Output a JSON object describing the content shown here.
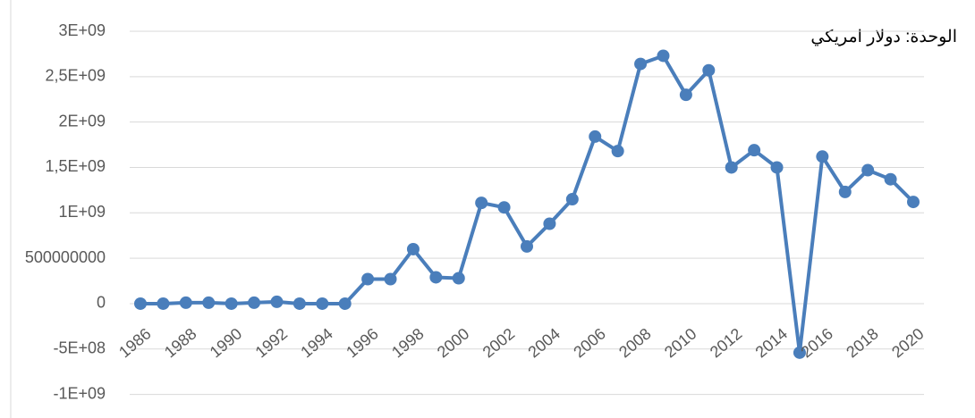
{
  "chart_data": {
    "type": "line",
    "annotation": "الوحدة: دولار امريكي",
    "categories": [
      "1986",
      null,
      "1988",
      null,
      "1990",
      null,
      "1992",
      null,
      "1994",
      null,
      "1996",
      null,
      "1998",
      null,
      "2000",
      null,
      "2002",
      null,
      "2004",
      null,
      "2006",
      null,
      "2008",
      null,
      "2010",
      null,
      "2012",
      null,
      "2014",
      null,
      "2016",
      null,
      "2018",
      null,
      "2020"
    ],
    "series": [
      {
        "color": "#4a7ebb",
        "values": [
          0,
          0,
          10000000,
          10000000,
          0,
          10000000,
          20000000,
          0,
          0,
          0,
          270000000,
          270000000,
          600000000,
          290000000,
          280000000,
          1110000000,
          1060000000,
          630000000,
          880000000,
          1150000000,
          1840000000,
          1680000000,
          2640000000,
          2730000000,
          2300000000,
          2570000000,
          1500000000,
          1690000000,
          1500000000,
          -540000000,
          1620000000,
          1230000000,
          1470000000,
          1370000000,
          1120000000
        ]
      }
    ],
    "ylim": [
      -1000000000,
      3000000000
    ],
    "yticks": [
      {
        "value": -1000000000,
        "label": "-1E+09"
      },
      {
        "value": -500000000,
        "label": "-5E+08"
      },
      0,
      500000000,
      {
        "value": 1000000000,
        "label": "1E+09"
      },
      {
        "value": 1500000000,
        "label": "1,5E+09"
      },
      {
        "value": 2000000000,
        "label": "2E+09"
      },
      {
        "value": 2500000000,
        "label": "2,5E+09"
      },
      {
        "value": 3000000000,
        "label": "3E+09"
      }
    ],
    "grid": true
  }
}
